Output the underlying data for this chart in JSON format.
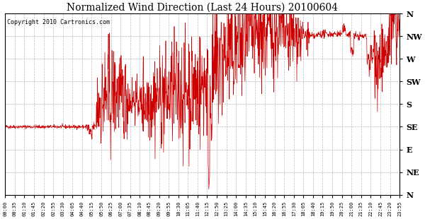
{
  "title": "Normalized Wind Direction (Last 24 Hours) 20100604",
  "copyright": "Copyright 2010 Cartronics.com",
  "line_color": "#cc0000",
  "bg_color": "#ffffff",
  "grid_color": "#aaaaaa",
  "ytick_labels": [
    "N",
    "NW",
    "W",
    "SW",
    "S",
    "SE",
    "E",
    "NE",
    "N"
  ],
  "ytick_values": [
    8,
    7,
    6,
    5,
    4,
    3,
    2,
    1,
    0
  ],
  "time_labels": [
    "00:00",
    "00:35",
    "01:10",
    "01:45",
    "02:20",
    "02:55",
    "03:30",
    "04:05",
    "04:40",
    "05:15",
    "05:50",
    "06:25",
    "07:00",
    "07:35",
    "08:10",
    "08:45",
    "09:20",
    "09:55",
    "10:30",
    "11:05",
    "11:40",
    "12:15",
    "12:50",
    "13:25",
    "14:00",
    "14:35",
    "15:10",
    "15:45",
    "16:20",
    "16:55",
    "17:30",
    "18:05",
    "18:40",
    "19:15",
    "19:50",
    "20:25",
    "21:00",
    "21:35",
    "22:10",
    "22:45",
    "23:20",
    "23:55"
  ],
  "n_points": 1440,
  "seed": 42
}
